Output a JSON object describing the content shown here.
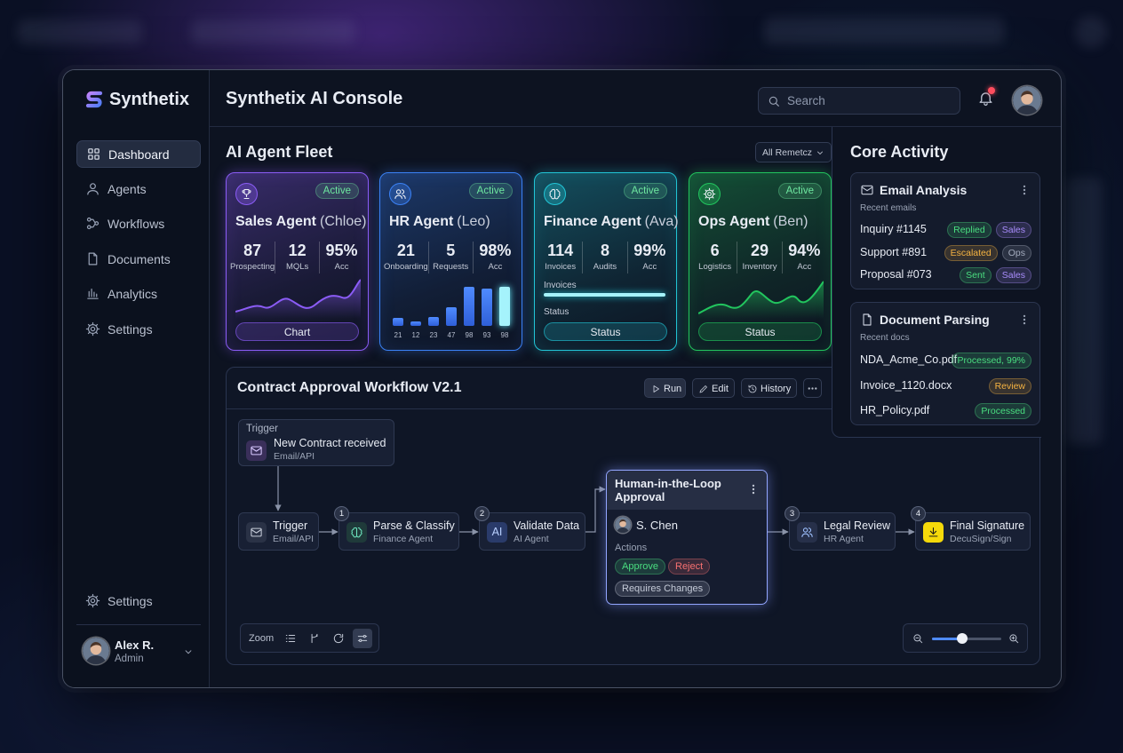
{
  "brand": "Synthetix",
  "header": {
    "title": "Synthetix AI Console",
    "search": "Search"
  },
  "nav": {
    "items": [
      "Dashboard",
      "Agents",
      "Workflows",
      "Documents",
      "Analytics",
      "Settings"
    ],
    "active": 0,
    "bottom": "Settings"
  },
  "user": {
    "name": "Alex R.",
    "role": "Admin"
  },
  "fleet": {
    "title": "AI Agent Fleet",
    "filter": "All Remetcz",
    "agents": [
      {
        "name": "Sales Agent",
        "person": "(Chloe)",
        "status": "Active",
        "color": "#8b5cf6",
        "stats": [
          {
            "value": 87,
            "label": "Prospecting"
          },
          {
            "value": 12,
            "label": "MQLs"
          },
          {
            "value": "95%",
            "label": "Acc"
          }
        ],
        "button": "Chart"
      },
      {
        "name": "HR Agent",
        "person": "(Leo)",
        "status": "Active",
        "color": "#3b82f6",
        "stats": [
          {
            "value": 21,
            "label": "Onboarding"
          },
          {
            "value": 5,
            "label": "Requests"
          },
          {
            "value": "98%",
            "label": "Acc"
          }
        ],
        "bars": [
          21,
          12,
          23,
          47,
          98,
          93,
          98
        ]
      },
      {
        "name": "Finance Agent",
        "person": "(Ava)",
        "status": "Active",
        "color": "#22c5d6",
        "stats": [
          {
            "value": 114,
            "label": "Invoices"
          },
          {
            "value": 8,
            "label": "Audits"
          },
          {
            "value": "99%",
            "label": "Acc"
          }
        ],
        "progress_label": "Invoices",
        "status_label": "Status",
        "button": "Status"
      },
      {
        "name": "Ops Agent",
        "person": "(Ben)",
        "status": "Active",
        "color": "#22c55e",
        "stats": [
          {
            "value": 6,
            "label": "Logistics"
          },
          {
            "value": 29,
            "label": "Inventory"
          },
          {
            "value": "94%",
            "label": "Acc"
          }
        ],
        "button": "Status"
      }
    ]
  },
  "workflow": {
    "title": "Contract Approval Workflow V2.1",
    "actions": [
      "Run",
      "Edit",
      "History"
    ],
    "trigger": {
      "label": "Trigger",
      "title": "New Contract received",
      "subtitle": "Email/API"
    },
    "steps": [
      {
        "title": "Trigger",
        "subtitle": "Email/API"
      },
      {
        "number": 1,
        "title": "Parse & Classify",
        "subtitle": "Finance Agent"
      },
      {
        "number": 2,
        "icon": "AI",
        "title": "Validate Data",
        "subtitle": "AI Agent"
      },
      {
        "number": 3,
        "title": "Legal Review",
        "subtitle": "HR Agent"
      },
      {
        "number": 4,
        "title": "Final Signature",
        "subtitle": "DecuSign/Sign"
      }
    ],
    "approval": {
      "title": "Human-in-the-Loop Approval",
      "assignee": "S. Chen",
      "actions_label": "Actions",
      "actions": [
        {
          "label": "Approve",
          "color": "#4ade80"
        },
        {
          "label": "Reject",
          "color": "#f87171"
        },
        {
          "label": "Requires Changes",
          "color": "#c5cbd8"
        }
      ]
    },
    "zoom_label": "Zoom"
  },
  "activity": {
    "title": "Core Activity",
    "email": {
      "title": "Email Analysis",
      "subtitle": "Recent emails",
      "items": [
        {
          "name": "Inquiry #1145",
          "status": "Replied",
          "status_color": "#4ade80",
          "tag": "Sales",
          "tag_color": "#a78bfa"
        },
        {
          "name": "Support #891",
          "status": "Escalated",
          "status_color": "#f5b342",
          "tag": "Ops",
          "tag_color": "#a3abbd"
        },
        {
          "name": "Proposal #073",
          "status": "Sent",
          "status_color": "#4ade80",
          "tag": "Sales",
          "tag_color": "#a78bfa"
        }
      ]
    },
    "documents": {
      "title": "Document Parsing",
      "subtitle": "Recent docs",
      "items": [
        {
          "name": "NDA_Acme_Co.pdf",
          "status": "Processed, 99%",
          "status_color": "#4ade80"
        },
        {
          "name": "Invoice_1120.docx",
          "status": "Review",
          "status_color": "#f5b342"
        },
        {
          "name": "HR_Policy.pdf",
          "status": "Processed",
          "status_color": "#4ade80"
        }
      ]
    }
  }
}
